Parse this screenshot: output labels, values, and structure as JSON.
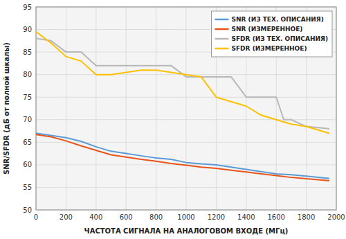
{
  "chart_data": {
    "type": "line",
    "xlabel": "ЧАСТОТА СИГНАЛА НА АНАЛОГОВОМ ВХОДЕ (МГц)",
    "ylabel": "SNR/SFDR (дБ от полной шкалы)",
    "xlim": [
      0,
      2000
    ],
    "ylim": [
      50,
      95
    ],
    "xticks": [
      0,
      200,
      400,
      600,
      800,
      1000,
      1200,
      1400,
      1600,
      1800,
      2000
    ],
    "yticks": [
      50,
      55,
      60,
      65,
      70,
      75,
      80,
      85,
      90,
      95
    ],
    "grid": true,
    "legend": "upper right",
    "series": [
      {
        "name": "SNR (ИЗ ТЕХ. ОПИСАНИЯ)",
        "color": "#5b9bd5",
        "x": [
          0,
          100,
          200,
          300,
          400,
          500,
          600,
          700,
          800,
          900,
          1000,
          1100,
          1200,
          1300,
          1400,
          1500,
          1600,
          1700,
          1800,
          1950
        ],
        "values": [
          67.0,
          66.5,
          66.0,
          65.2,
          64.0,
          63.0,
          62.5,
          62.0,
          61.5,
          61.2,
          60.5,
          60.2,
          60.0,
          59.5,
          59.0,
          58.5,
          58.0,
          57.8,
          57.5,
          57.0
        ]
      },
      {
        "name": "SNR (ИЗМЕРЕННОЕ)",
        "color": "#e8541a",
        "x": [
          0,
          100,
          200,
          300,
          400,
          500,
          600,
          700,
          800,
          900,
          1000,
          1100,
          1200,
          1300,
          1400,
          1500,
          1600,
          1700,
          1800,
          1950
        ],
        "values": [
          66.7,
          66.2,
          65.3,
          64.2,
          63.2,
          62.2,
          61.7,
          61.2,
          60.8,
          60.3,
          59.9,
          59.5,
          59.2,
          58.8,
          58.4,
          58.0,
          57.6,
          57.2,
          56.9,
          56.5
        ]
      },
      {
        "name": "SFDR (ИЗ ТЕХ. ОПИСАНИЯ)",
        "color": "#b8b8b8",
        "x": [
          0,
          100,
          200,
          300,
          400,
          450,
          500,
          600,
          700,
          800,
          900,
          1000,
          1100,
          1200,
          1250,
          1300,
          1400,
          1500,
          1600,
          1650,
          1700,
          1800,
          1950
        ],
        "values": [
          88.0,
          87.5,
          85.0,
          85.0,
          82.0,
          82.0,
          82.0,
          82.0,
          82.0,
          82.0,
          82.0,
          79.5,
          79.5,
          79.5,
          79.5,
          79.5,
          75.0,
          75.0,
          75.0,
          70.0,
          70.0,
          68.5,
          68.0
        ]
      },
      {
        "name": "SFDR (ИЗМЕРЕННОЕ)",
        "color": "#ffc000",
        "x": [
          0,
          100,
          200,
          300,
          400,
          500,
          600,
          700,
          800,
          900,
          1000,
          1100,
          1200,
          1300,
          1400,
          1500,
          1600,
          1700,
          1800,
          1950
        ],
        "values": [
          89.5,
          87.0,
          84.0,
          83.0,
          80.0,
          80.0,
          80.5,
          81.0,
          81.0,
          80.5,
          80.0,
          79.5,
          75.0,
          74.0,
          73.0,
          71.0,
          70.0,
          69.0,
          68.5,
          67.0
        ]
      }
    ]
  }
}
